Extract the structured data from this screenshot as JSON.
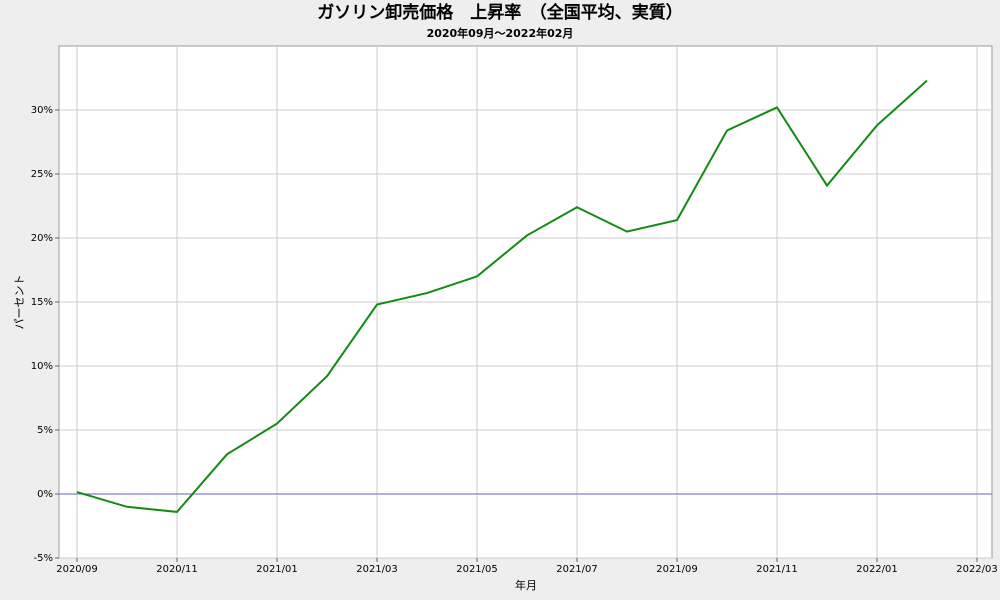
{
  "chart_data": {
    "type": "line",
    "title": "ガソリン卸売価格　上昇率　（全国平均、実質）",
    "subtitle": "2020年09月～2022年02月",
    "xlabel": "年月",
    "ylabel": "パーセント",
    "x": [
      "2020/09",
      "2020/10",
      "2020/11",
      "2020/12",
      "2021/01",
      "2021/02",
      "2021/03",
      "2021/04",
      "2021/05",
      "2021/06",
      "2021/07",
      "2021/08",
      "2021/09",
      "2021/10",
      "2021/11",
      "2021/12",
      "2022/01",
      "2022/02"
    ],
    "series": [
      {
        "color": "#138a13",
        "values": [
          0.15,
          -1.0,
          -1.4,
          3.1,
          5.5,
          9.2,
          14.8,
          15.7,
          17.0,
          20.2,
          22.4,
          20.5,
          21.4,
          28.4,
          30.2,
          24.1,
          28.8,
          32.3
        ]
      }
    ],
    "xticks": [
      "2020/09",
      "2020/11",
      "2021/01",
      "2021/03",
      "2021/05",
      "2021/07",
      "2021/09",
      "2021/11",
      "2022/01",
      "2022/03"
    ],
    "ylim": [
      -5,
      35
    ],
    "yticks": [
      {
        "value": -5,
        "label": "-5%"
      },
      {
        "value": 0,
        "label": "0%"
      },
      {
        "value": 5,
        "label": "5%"
      },
      {
        "value": 10,
        "label": "10%"
      },
      {
        "value": 15,
        "label": "15%"
      },
      {
        "value": 20,
        "label": "20%"
      },
      {
        "value": 25,
        "label": "25%"
      },
      {
        "value": 30,
        "label": "30%"
      }
    ],
    "grid": true,
    "zero_line_color": "#8080d0"
  }
}
